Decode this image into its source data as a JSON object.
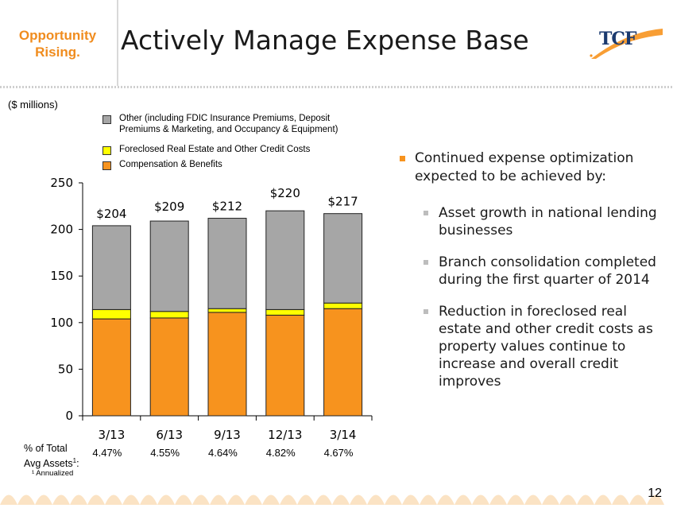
{
  "header": {
    "tagline_line1": "Opportunity",
    "tagline_line2": "Rising.",
    "title": "Actively Manage Expense Base",
    "logo_text": "TCF"
  },
  "units_label": "($ millions)",
  "colors": {
    "other": "#a6a6a6",
    "foreclosed": "#ffff00",
    "compensation": "#f7931e",
    "accent": "#f08c1e"
  },
  "chart_data": {
    "type": "bar",
    "stacked": true,
    "categories": [
      "3/13",
      "6/13",
      "9/13",
      "12/13",
      "3/14"
    ],
    "series": [
      {
        "name": "Compensation & Benefits",
        "key": "compensation",
        "values": [
          104,
          105,
          111,
          108,
          115
        ]
      },
      {
        "name": "Foreclosed Real Estate and Other Credit Costs",
        "key": "foreclosed",
        "values": [
          10,
          7,
          4,
          6,
          6
        ]
      },
      {
        "name": "Other (including FDIC Insurance Premiums, Deposit Premiums & Marketing, and Occupancy & Equipment)",
        "key": "other",
        "values": [
          90,
          97,
          97,
          106,
          96
        ]
      }
    ],
    "totals": [
      "$204",
      "$209",
      "$212",
      "$220",
      "$217"
    ],
    "ylim": [
      0,
      250
    ],
    "yticks": [
      0,
      50,
      100,
      150,
      200,
      250
    ],
    "legend_position": "top"
  },
  "legend": [
    {
      "key": "other",
      "label": "Other (including FDIC Insurance Premiums, Deposit Premiums & Marketing, and Occupancy & Equipment)"
    },
    {
      "key": "foreclosed",
      "label": "Foreclosed Real Estate and Other Credit Costs"
    },
    {
      "key": "compensation",
      "label": "Compensation & Benefits"
    }
  ],
  "assets_row": {
    "label_line1": "% of Total",
    "label_line2": "Avg Assets",
    "label_sup": "1",
    "label_suffix": ":",
    "values": [
      "4.47%",
      "4.55%",
      "4.64%",
      "4.82%",
      "4.67%"
    ]
  },
  "footnote": "¹ Annualized",
  "bullets": {
    "main": "Continued expense optimization expected to be achieved by:",
    "sub": [
      "Asset growth in national lending businesses",
      "Branch consolidation completed during the first quarter of 2014",
      "Reduction in foreclosed real estate and other credit costs as property values continue to increase and overall credit improves"
    ]
  },
  "page_number": "12"
}
